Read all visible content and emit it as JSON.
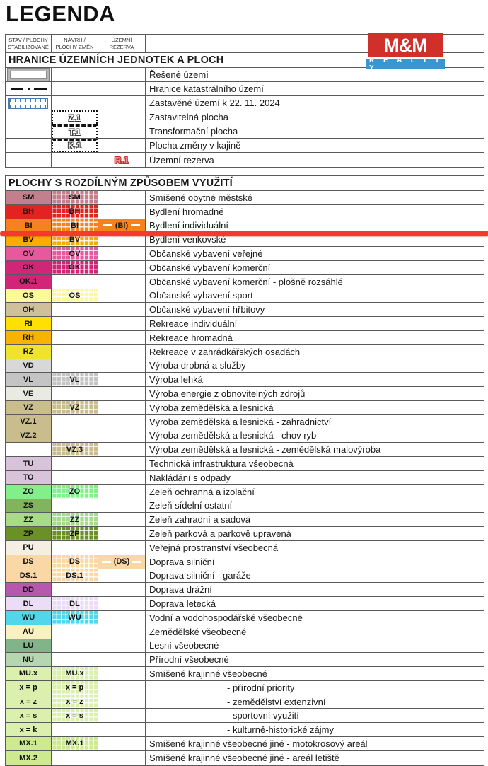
{
  "page_title": "LEGENDA",
  "logo": {
    "line1": "M&M",
    "line2": "R E A L I T Y",
    "red": "#d1302a",
    "blue": "#3a95d1"
  },
  "annotation": {
    "color": "#f43a2c"
  },
  "columns": [
    {
      "line1": "STAV / PLOCHY",
      "line2": "STABILIZOVANÉ"
    },
    {
      "line1": "NÁVRH /",
      "line2": "PLOCHY ZMĚN"
    },
    {
      "line1": "ÚZEMNÍ",
      "line2": "REZERVA"
    }
  ],
  "section1": {
    "title": "HRANICE ÚZEMNÍCH JEDNOTEK A PLOCH",
    "rows": [
      {
        "symbol": "resene-uzemi",
        "label": "",
        "desc": "Řešené území"
      },
      {
        "symbol": "hranice-katastru",
        "label": "",
        "desc": "Hranice katastrálního území"
      },
      {
        "symbol": "zastavene-uzemi",
        "label": "",
        "desc": "Zastavěné území k 22. 11. 2024"
      },
      {
        "symbol": "zastavitelna-plocha",
        "label": "Z.1",
        "desc": "Zastavitelná plocha"
      },
      {
        "symbol": "transformacni-plocha",
        "label": "T.1",
        "desc": "Transformační plocha"
      },
      {
        "symbol": "plocha-zmeny-v-krajine",
        "label": "K.1",
        "desc": "Plocha změny v kajině"
      },
      {
        "symbol": "uzemni-rezerva",
        "label": "R.1",
        "desc": "Územní rezerva"
      }
    ]
  },
  "section2": {
    "title": "PLOCHY S ROZDÍLNÝM ZPŮSOBEM VYUŽITÍ",
    "rows": [
      {
        "stav": "SM",
        "navrh": "SM",
        "rezerva": "",
        "color": "#c2808d",
        "desc": "Smíšené obytné městské",
        "indent": false
      },
      {
        "stav": "BH",
        "navrh": "BH",
        "rezerva": "",
        "color": "#e32322",
        "desc": "Bydlení hromadné",
        "indent": false
      },
      {
        "stav": "BI",
        "navrh": "BI",
        "rezerva": "(BI)",
        "color": "#f5821f",
        "desc": "Bydlení individuální",
        "indent": false
      },
      {
        "stav": "BV",
        "navrh": "BV",
        "rezerva": "",
        "color": "#f8ac00",
        "desc": "Bydlení venkovské",
        "indent": false
      },
      {
        "stav": "OV",
        "navrh": "OV",
        "rezerva": "",
        "color": "#e65a9d",
        "desc": "Občanské vybavení veřejné",
        "indent": false
      },
      {
        "stav": "OK",
        "navrh": "OK",
        "rezerva": "",
        "color": "#cf2678",
        "desc": "Občanské vybavení komerční",
        "indent": false
      },
      {
        "stav": "OK.1",
        "navrh": "",
        "rezerva": "",
        "color": "#cf2678",
        "desc": "Občanské vybavení komerční - plošně rozsáhlé",
        "indent": false
      },
      {
        "stav": "OS",
        "navrh": "OS",
        "rezerva": "",
        "color": "#fbf99a",
        "desc": "Občanské vybavení sport",
        "indent": false
      },
      {
        "stav": "OH",
        "navrh": "",
        "rezerva": "",
        "color": "#cfc09b",
        "desc": "Občanské vybavení hřbitovy",
        "indent": false
      },
      {
        "stav": "RI",
        "navrh": "",
        "rezerva": "",
        "color": "#ffe000",
        "desc": "Rekreace individuální",
        "indent": false
      },
      {
        "stav": "RH",
        "navrh": "",
        "rezerva": "",
        "color": "#f8b200",
        "desc": "Rekreace hromadná",
        "indent": false
      },
      {
        "stav": "RZ",
        "navrh": "",
        "rezerva": "",
        "color": "#efe32e",
        "desc": "Rekreace v zahrádkářských osadách",
        "indent": false
      },
      {
        "stav": "VD",
        "navrh": "",
        "rezerva": "",
        "color": "#d8d8d8",
        "desc": "Výroba drobná a služby",
        "indent": false
      },
      {
        "stav": "VL",
        "navrh": "VL",
        "rezerva": "",
        "color": "#c4c4c4",
        "desc": "Výroba lehká",
        "indent": false
      },
      {
        "stav": "VE",
        "navrh": "",
        "rezerva": "",
        "color": "#e9ebe3",
        "desc": "Výroba energie z obnovitelných zdrojů",
        "indent": false
      },
      {
        "stav": "VZ",
        "navrh": "VZ",
        "rezerva": "",
        "color": "#c9bd8e",
        "desc": "Výroba zemědělská a lesnická",
        "indent": false
      },
      {
        "stav": "VZ.1",
        "navrh": "",
        "rezerva": "",
        "color": "#c9bd8e",
        "desc": "Výroba zemědělská a lesnická - zahradnictví",
        "indent": false
      },
      {
        "stav": "VZ.2",
        "navrh": "",
        "rezerva": "",
        "color": "#c9bd8e",
        "desc": "Výroba zemědělská a lesnická - chov ryb",
        "indent": false
      },
      {
        "stav": "",
        "navrh": "VZ.3",
        "rezerva": "",
        "color": "#c9bd8e",
        "desc": "Výroba zemědělská a lesnická - zemědělská malovýroba",
        "indent": false
      },
      {
        "stav": "TU",
        "navrh": "",
        "rezerva": "",
        "color": "#d8c3da",
        "desc": "Technická infrastruktura všeobecná",
        "indent": false
      },
      {
        "stav": "TO",
        "navrh": "",
        "rezerva": "",
        "color": "#d8c3da",
        "desc": "Nakládání s odpady",
        "indent": false
      },
      {
        "stav": "ZO",
        "navrh": "ZO",
        "rezerva": "",
        "color": "#83ef8b",
        "desc": "Zeleň ochranná a izolační",
        "indent": false
      },
      {
        "stav": "ZS",
        "navrh": "",
        "rezerva": "",
        "color": "#84b35d",
        "desc": "Zeleň sídelní ostatní",
        "indent": false
      },
      {
        "stav": "ZZ",
        "navrh": "ZZ",
        "rezerva": "",
        "color": "#a8da8a",
        "desc": "Zeleň zahradní a sadová",
        "indent": false
      },
      {
        "stav": "ZP",
        "navrh": "ZP",
        "rezerva": "",
        "color": "#6b9026",
        "desc": "Zeleň parková a parkově upravená",
        "indent": false
      },
      {
        "stav": "PU",
        "navrh": "",
        "rezerva": "",
        "color": "#f4efe2",
        "desc": "Veřejná prostranství všeobecná",
        "indent": false
      },
      {
        "stav": "DS",
        "navrh": "DS",
        "rezerva": "(DS)",
        "color": "#fad8a6",
        "desc": "Doprava silniční",
        "indent": false
      },
      {
        "stav": "DS.1",
        "navrh": "DS.1",
        "rezerva": "",
        "color": "#fad8a6",
        "desc": "Doprava silniční - garáže",
        "indent": false
      },
      {
        "stav": "DD",
        "navrh": "",
        "rezerva": "",
        "color": "#b659ae",
        "desc": "Doprava drážní",
        "indent": false
      },
      {
        "stav": "DL",
        "navrh": "DL",
        "rezerva": "",
        "color": "#ecddf6",
        "desc": "Doprava letecká",
        "indent": false
      },
      {
        "stav": "WU",
        "navrh": "WU",
        "rezerva": "",
        "color": "#52d6e9",
        "desc": "Vodní a vodohospodářské všeobecné",
        "indent": false
      },
      {
        "stav": "AU",
        "navrh": "",
        "rezerva": "",
        "color": "#f8f2c3",
        "desc": "Zemědělské všeobecné",
        "indent": false
      },
      {
        "stav": "LU",
        "navrh": "",
        "rezerva": "",
        "color": "#82b48a",
        "desc": "Lesní všeobecné",
        "indent": false
      },
      {
        "stav": "NU",
        "navrh": "",
        "rezerva": "",
        "color": "#b5d6af",
        "desc": "Přírodní všeobecné",
        "indent": false
      },
      {
        "stav": "MU.x",
        "navrh": "MU.x",
        "rezerva": "",
        "color": "#dcf0ad",
        "desc": "Smíšené krajinné všeobecné",
        "indent": false
      },
      {
        "stav": "x = p",
        "navrh": "x = p",
        "rezerva": "",
        "color": "#dcf0ad",
        "desc": "- přírodní priority",
        "indent": true
      },
      {
        "stav": "x = z",
        "navrh": "x = z",
        "rezerva": "",
        "color": "#dcf0ad",
        "desc": "- zemědělství extenzivní",
        "indent": true
      },
      {
        "stav": "x = s",
        "navrh": "x = s",
        "rezerva": "",
        "color": "#dcf0ad",
        "desc": "- sportovní využití",
        "indent": true
      },
      {
        "stav": "x = k",
        "navrh": "",
        "rezerva": "",
        "color": "#dcf0ad",
        "desc": "- kulturně-historické zájmy",
        "indent": true
      },
      {
        "stav": "MX.1",
        "navrh": "MX.1",
        "rezerva": "",
        "color": "#cdea8e",
        "desc": "Smíšené krajinné všeobecné jiné - motokrosový areál",
        "indent": false
      },
      {
        "stav": "MX.2",
        "navrh": "",
        "rezerva": "",
        "color": "#cdea8e",
        "desc": "Smíšené krajinné všeobecné jiné - areál letiště",
        "indent": false
      }
    ]
  }
}
